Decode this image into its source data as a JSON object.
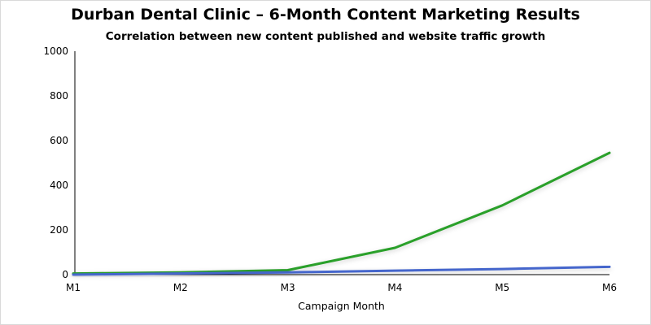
{
  "chart_data": {
    "type": "line",
    "title": "Durban Dental Clinic – 6-Month Content Marketing Results",
    "subtitle": "Correlation between new content published and website traffic growth",
    "xlabel": "Campaign Month",
    "ylabel": "",
    "categories": [
      "M1",
      "M2",
      "M3",
      "M4",
      "M5",
      "M6"
    ],
    "ylim": [
      0,
      1000
    ],
    "yticks": [
      0,
      200,
      400,
      600,
      800,
      1000
    ],
    "grid": false,
    "legend": "none",
    "series": [
      {
        "values": [
          5,
          10,
          20,
          120,
          310,
          545
        ],
        "color": "#2ca02c"
      },
      {
        "values": [
          0,
          5,
          10,
          18,
          25,
          35
        ],
        "color": "#4466cc"
      }
    ]
  }
}
